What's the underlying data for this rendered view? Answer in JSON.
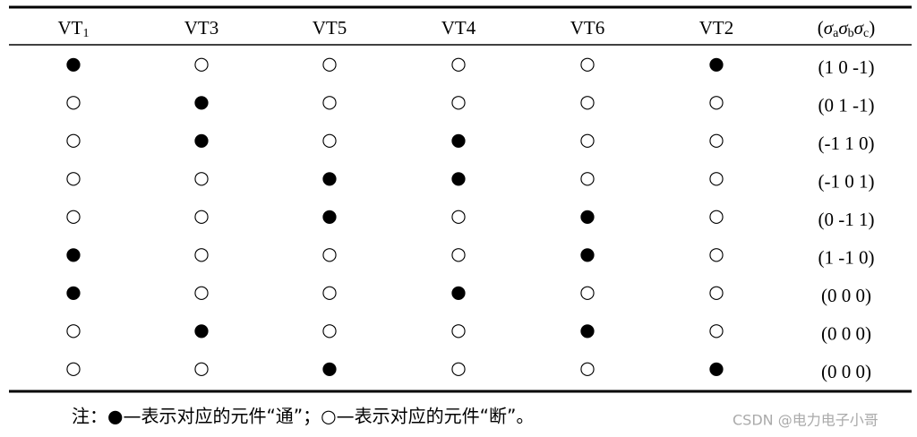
{
  "table": {
    "header": [
      [
        {
          "text": "VT"
        },
        {
          "text": "1",
          "sub": true
        }
      ],
      [
        {
          "text": "VT3"
        }
      ],
      [
        {
          "text": "VT5"
        }
      ],
      [
        {
          "text": "VT4"
        }
      ],
      [
        {
          "text": "VT6"
        }
      ],
      [
        {
          "text": "VT2"
        }
      ],
      [
        {
          "text": "("
        },
        {
          "text": "σ",
          "italic": true
        },
        {
          "text": "a",
          "sub": true
        },
        {
          "text": "σ",
          "italic": true
        },
        {
          "text": "b",
          "sub": true
        },
        {
          "text": "σ",
          "italic": true
        },
        {
          "text": "c",
          "sub": true
        },
        {
          "text": ")"
        }
      ]
    ],
    "rows": [
      [
        "●",
        "○",
        "○",
        "○",
        "○",
        "●",
        "(1 0 -1)"
      ],
      [
        "○",
        "●",
        "○",
        "○",
        "○",
        "○",
        "(0 1 -1)"
      ],
      [
        "○",
        "●",
        "○",
        "●",
        "○",
        "○",
        "(-1 1 0)"
      ],
      [
        "○",
        "○",
        "●",
        "●",
        "○",
        "○",
        "(-1 0 1)"
      ],
      [
        "○",
        "○",
        "●",
        "○",
        "●",
        "○",
        "(0 -1 1)"
      ],
      [
        "●",
        "○",
        "○",
        "○",
        "●",
        "○",
        "(1 -1 0)"
      ],
      [
        "●",
        "○",
        "○",
        "●",
        "○",
        "○",
        "(0 0 0)"
      ],
      [
        "○",
        "●",
        "○",
        "○",
        "●",
        "○",
        "(0 0 0)"
      ],
      [
        "○",
        "○",
        "●",
        "○",
        "○",
        "●",
        "(0 0 0)"
      ]
    ]
  },
  "note": "注：●—表示对应的元件“通”；○—表示对应的元件“断”。",
  "watermark": "CSDN @电力电子小哥"
}
